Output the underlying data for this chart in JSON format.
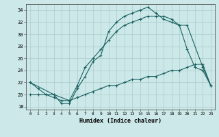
{
  "xlabel": "Humidex (Indice chaleur)",
  "ylabel": "",
  "xlim": [
    -0.5,
    23.5
  ],
  "ylim": [
    17.5,
    35
  ],
  "yticks": [
    18,
    20,
    22,
    24,
    26,
    28,
    30,
    32,
    34
  ],
  "xticks": [
    0,
    1,
    2,
    3,
    4,
    5,
    6,
    7,
    8,
    9,
    10,
    11,
    12,
    13,
    14,
    15,
    16,
    17,
    18,
    19,
    20,
    21,
    22,
    23
  ],
  "bg_color": "#cce8e8",
  "grid_color": "#aacccc",
  "line_color": "#1a6060",
  "line1_x": [
    0,
    1,
    2,
    3,
    4,
    5,
    6,
    7,
    8,
    9,
    10,
    11,
    12,
    13,
    14,
    15,
    16,
    17,
    18,
    19,
    20,
    22,
    23
  ],
  "line1_y": [
    22,
    21,
    20,
    20,
    18.5,
    18.5,
    21,
    23,
    25.5,
    26.5,
    30.5,
    32,
    33,
    33.5,
    34,
    34.5,
    33.5,
    32.5,
    32,
    31.5,
    31.5,
    24.5,
    21.5
  ],
  "line2_x": [
    0,
    3,
    5,
    6,
    7,
    8,
    9,
    10,
    11,
    12,
    13,
    14,
    15,
    16,
    17,
    18,
    19,
    20,
    21,
    22,
    23
  ],
  "line2_y": [
    22,
    20,
    19,
    21.5,
    24.5,
    26,
    27.5,
    29,
    30.5,
    31.5,
    32,
    32.5,
    33,
    33,
    33,
    32.5,
    31.5,
    27.5,
    24.5,
    24,
    21.5
  ],
  "line3_x": [
    0,
    1,
    2,
    3,
    4,
    5,
    6,
    7,
    8,
    9,
    10,
    11,
    12,
    13,
    14,
    15,
    16,
    17,
    18,
    19,
    20,
    21,
    22,
    23
  ],
  "line3_y": [
    20,
    20,
    20,
    19.5,
    19,
    19,
    19.5,
    20,
    20.5,
    21,
    21.5,
    21.5,
    22,
    22.5,
    22.5,
    23,
    23,
    23.5,
    24,
    24,
    24.5,
    25,
    25,
    21.5
  ]
}
